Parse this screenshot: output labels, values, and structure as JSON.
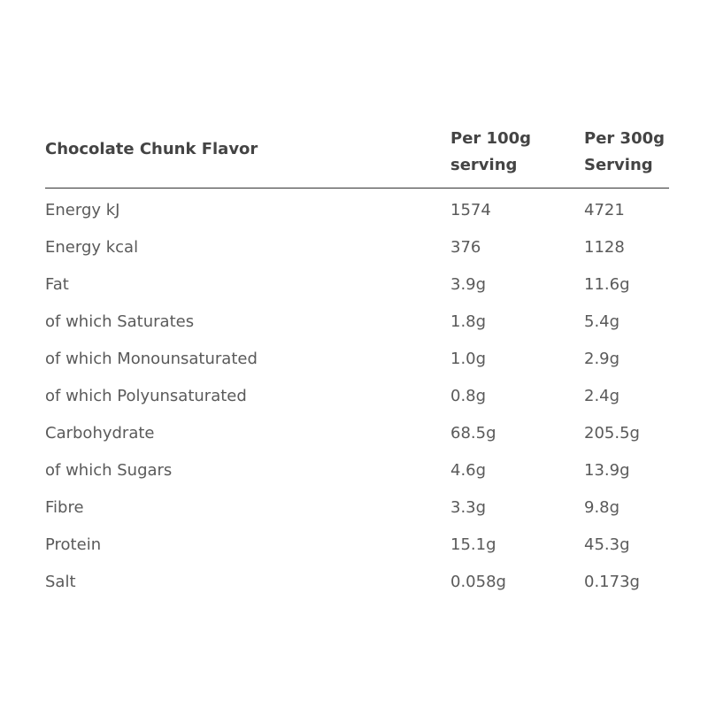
{
  "table": {
    "title": "Chocolate Chunk Flavor",
    "col_a": {
      "line1": "Per 100g",
      "line2": "serving"
    },
    "col_b": {
      "line1": "Per 300g",
      "line2": "Serving"
    },
    "rows": [
      {
        "name": "Energy kJ",
        "per100": "1574",
        "per300": "4721"
      },
      {
        "name": "Energy kcal",
        "per100": "376",
        "per300": "1128"
      },
      {
        "name": "Fat",
        "per100": "3.9g",
        "per300": "11.6g"
      },
      {
        "name": "of which Saturates",
        "per100": "1.8g",
        "per300": "5.4g"
      },
      {
        "name": "of which Monounsaturated",
        "per100": "1.0g",
        "per300": "2.9g"
      },
      {
        "name": "of which Polyunsaturated",
        "per100": "0.8g",
        "per300": "2.4g"
      },
      {
        "name": "Carbohydrate",
        "per100": "68.5g",
        "per300": "205.5g"
      },
      {
        "name": "of which Sugars",
        "per100": "4.6g",
        "per300": "13.9g"
      },
      {
        "name": "Fibre",
        "per100": "3.3g",
        "per300": "9.8g"
      },
      {
        "name": "Protein",
        "per100": "15.1g",
        "per300": "45.3g"
      },
      {
        "name": "Salt",
        "per100": "0.058g",
        "per300": "0.173g"
      }
    ]
  }
}
